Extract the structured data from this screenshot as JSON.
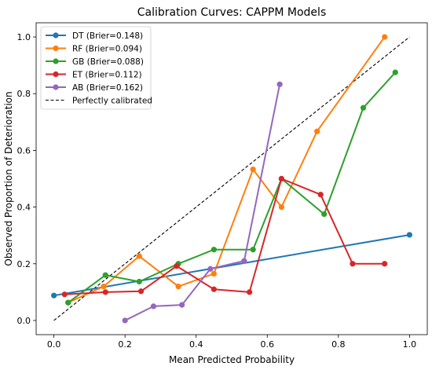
{
  "chart_data": {
    "type": "line",
    "title": "Calibration Curves: CAPPM Models",
    "xlabel": "Mean Predicted Probability",
    "ylabel": "Observed Proportion of Deterioration",
    "xlim": [
      -0.05,
      1.05
    ],
    "ylim": [
      -0.05,
      1.05
    ],
    "xticks": [
      0.0,
      0.2,
      0.4,
      0.6,
      0.8,
      1.0
    ],
    "yticks": [
      0.0,
      0.2,
      0.4,
      0.6,
      0.8,
      1.0
    ],
    "xtick_labels": [
      "0.0",
      "0.2",
      "0.4",
      "0.6",
      "0.8",
      "1.0"
    ],
    "ytick_labels": [
      "0.0",
      "0.2",
      "0.4",
      "0.6",
      "0.8",
      "1.0"
    ],
    "grid": false,
    "legend_position": "top-left",
    "series": [
      {
        "name": "DT (Brier=0.148)",
        "color": "#1f77b4",
        "x": [
          0.0,
          1.0
        ],
        "y": [
          0.088,
          0.302
        ]
      },
      {
        "name": "RF (Brier=0.094)",
        "color": "#ff7f0e",
        "x": [
          0.04,
          0.14,
          0.24,
          0.35,
          0.45,
          0.56,
          0.64,
          0.74,
          0.93
        ],
        "y": [
          0.063,
          0.12,
          0.227,
          0.12,
          0.165,
          0.533,
          0.4,
          0.667,
          1.0
        ]
      },
      {
        "name": "GB (Brier=0.088)",
        "color": "#2ca02c",
        "x": [
          0.04,
          0.145,
          0.24,
          0.35,
          0.45,
          0.56,
          0.64,
          0.76,
          0.87,
          0.96
        ],
        "y": [
          0.063,
          0.16,
          0.137,
          0.2,
          0.25,
          0.25,
          0.5,
          0.375,
          0.75,
          0.875
        ]
      },
      {
        "name": "ET (Brier=0.112)",
        "color": "#d62728",
        "x": [
          0.03,
          0.145,
          0.245,
          0.345,
          0.45,
          0.55,
          0.64,
          0.75,
          0.84,
          0.93
        ],
        "y": [
          0.092,
          0.1,
          0.103,
          0.192,
          0.11,
          0.1,
          0.5,
          0.444,
          0.2,
          0.2
        ]
      },
      {
        "name": "AB (Brier=0.162)",
        "color": "#9467bd",
        "x": [
          0.2,
          0.28,
          0.36,
          0.44,
          0.535,
          0.635
        ],
        "y": [
          0.0,
          0.05,
          0.055,
          0.182,
          0.21,
          0.833
        ]
      }
    ],
    "reference_line": {
      "name": "Perfectly calibrated",
      "color": "#000000",
      "style": "dashed",
      "x": [
        0.0,
        1.0
      ],
      "y": [
        0.0,
        1.0
      ]
    }
  }
}
